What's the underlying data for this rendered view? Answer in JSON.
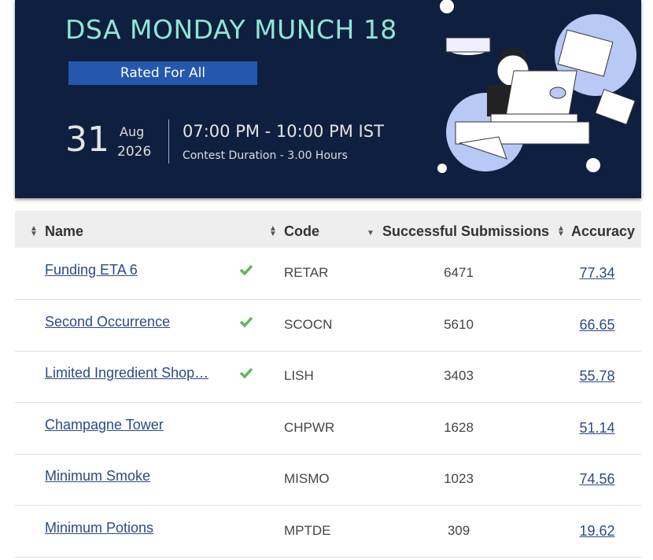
{
  "banner": {
    "title": "DSA MONDAY MUNCH 18",
    "badge": "Rated For All",
    "day": "31",
    "month": "Aug",
    "year": "2026",
    "time": "07:00 PM - 10:00 PM IST",
    "duration": "Contest Duration - 3.00 Hours"
  },
  "table": {
    "headers": [
      "Name",
      "Code",
      "Successful Submissions",
      "Accuracy"
    ],
    "rows": [
      {
        "name": "Funding ETA 6",
        "solved": true,
        "code": "RETAR",
        "submissions": 6471,
        "accuracy": 77.34
      },
      {
        "name": "Second Occurrence",
        "solved": true,
        "code": "SCOCN",
        "submissions": 5610,
        "accuracy": 66.65
      },
      {
        "name": "Limited Ingredient Shop…",
        "solved": true,
        "code": "LISH",
        "submissions": 3403,
        "accuracy": 55.78
      },
      {
        "name": "Champagne Tower",
        "solved": false,
        "code": "CHPWR",
        "submissions": 1628,
        "accuracy": 51.14
      },
      {
        "name": "Minimum Smoke",
        "solved": false,
        "code": "MISMO",
        "submissions": 1023,
        "accuracy": 74.56
      },
      {
        "name": "Minimum Potions",
        "solved": false,
        "code": "MPTDE",
        "submissions": 309,
        "accuracy": 19.62
      }
    ]
  }
}
